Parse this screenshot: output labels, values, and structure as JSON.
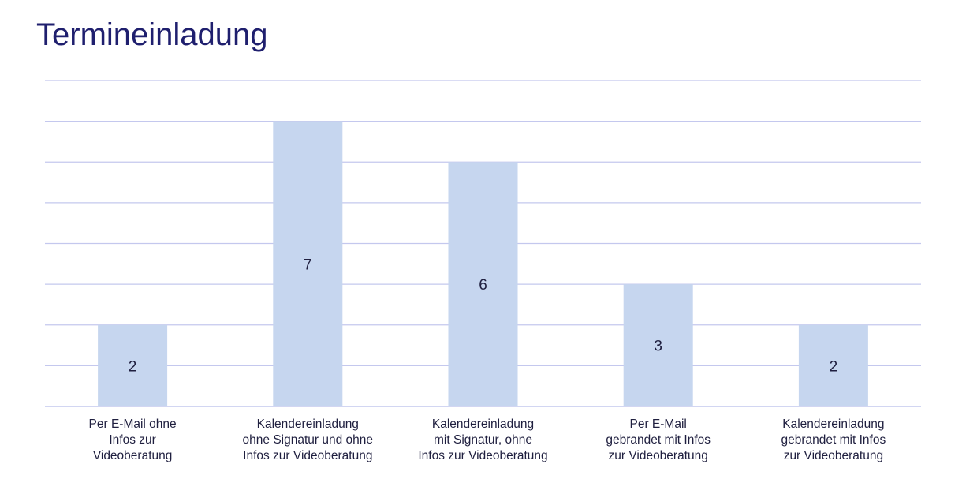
{
  "chart_data": {
    "type": "bar",
    "title": "Termineinladung",
    "categories": [
      "Per E-Mail ohne\nInfos zur\nVideoberatung",
      "Kalendereinladung\nohne Signatur und ohne\nInfos zur Videoberatung",
      "Kalendereinladung\nmit Signatur, ohne\nInfos zur Videoberatung",
      "Per E-Mail\ngebrandet mit Infos\nzur Videoberatung",
      "Kalendereinladung\ngebrandet mit Infos\nzur Videoberatung"
    ],
    "values": [
      2,
      7,
      6,
      3,
      2
    ],
    "data_labels": [
      "2",
      "7",
      "6",
      "3",
      "2"
    ],
    "ylim": [
      0,
      8
    ],
    "grid": true,
    "y_ticks_shown": false,
    "legend": "none",
    "colors": {
      "bar": "#c6d6ef",
      "gridline": "#c4c8ee",
      "axis": "#c4c8ee",
      "title": "#1f1f6e",
      "label": "#1f1f3f"
    }
  }
}
